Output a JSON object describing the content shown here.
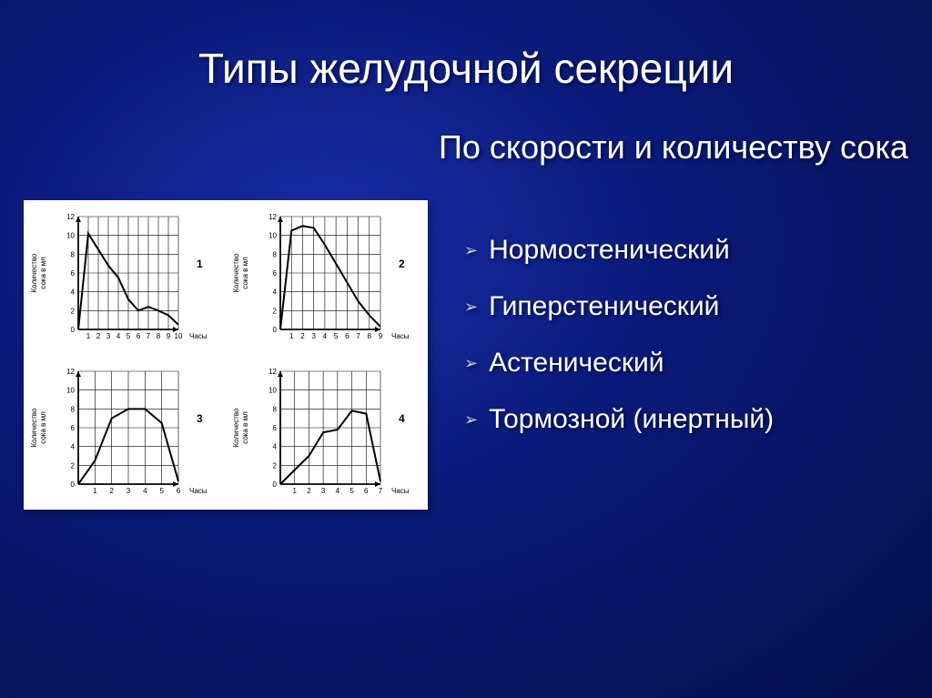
{
  "title": "Типы желудочной секреции",
  "subtitle": "По скорости и количеству сока",
  "bullets": [
    "Нормостенический",
    "Гиперстенический",
    "Астенический",
    "Тормозной (инертный)"
  ],
  "panel": {
    "background_color": "#ffffff",
    "axis_color": "#000000",
    "grid_color": "#000000",
    "line_color": "#000000",
    "line_width": 2,
    "y_axis_label": "Количество сока в мл",
    "x_axis_label": "Часы",
    "ylim": [
      0,
      12
    ],
    "ytick_step": 2,
    "charts": [
      {
        "id": "1",
        "x_values": [
          1,
          2,
          3,
          4,
          5,
          6,
          7,
          8,
          9,
          10
        ],
        "y_values": [
          10.2,
          8.5,
          6.8,
          5.5,
          3.2,
          2.0,
          2.4,
          2.0,
          1.5,
          0.5
        ],
        "x_max": 10
      },
      {
        "id": "2",
        "x_values": [
          1,
          2,
          3,
          4,
          5,
          6,
          7,
          8,
          9
        ],
        "y_values": [
          10.5,
          11.0,
          10.8,
          9.0,
          7.0,
          5.0,
          3.0,
          1.5,
          0.3
        ],
        "x_max": 9
      },
      {
        "id": "3",
        "x_values": [
          1,
          2,
          3,
          4,
          5,
          6
        ],
        "y_values": [
          2.5,
          7.0,
          8.0,
          8.0,
          6.5,
          0.3
        ],
        "x_max": 6
      },
      {
        "id": "4",
        "x_values": [
          1,
          2,
          3,
          4,
          5,
          6,
          7
        ],
        "y_values": [
          1.5,
          3.0,
          5.5,
          5.8,
          7.8,
          7.5,
          0.3
        ],
        "x_max": 7
      }
    ]
  },
  "bullet_color": "#ffffff",
  "arrow_color": "#c0d0f0",
  "title_fontsize": 46,
  "subtitle_fontsize": 36,
  "bullet_fontsize": 30
}
